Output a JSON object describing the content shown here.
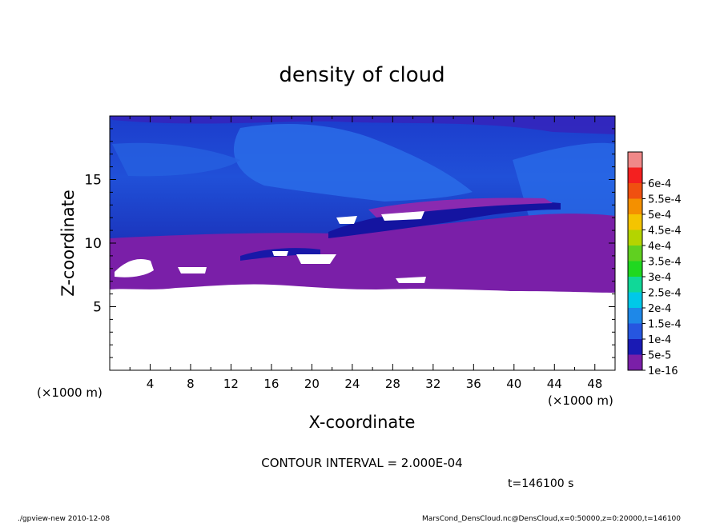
{
  "chart_data": {
    "type": "heatmap",
    "title": "density of cloud",
    "xlabel": "X-coordinate",
    "ylabel": "Z-coordinate",
    "x_unit_left": "(×1000 m)",
    "x_unit_right": "(×1000 m)",
    "xlim": [
      0,
      50
    ],
    "ylim": [
      0,
      20
    ],
    "x_ticks": [
      "4",
      "8",
      "12",
      "16",
      "20",
      "24",
      "28",
      "32",
      "36",
      "40",
      "44",
      "48"
    ],
    "y_ticks": [
      "5",
      "10",
      "15"
    ],
    "colorbar": {
      "labels": [
        "1e-16",
        "5e-5",
        "1e-4",
        "1.5e-4",
        "2e-4",
        "2.5e-4",
        "3e-4",
        "3.5e-4",
        "4e-4",
        "4.5e-4",
        "5e-4",
        "5.5e-4",
        "6e-4"
      ],
      "colors": [
        "#7a1fa8",
        "#1a1ab4",
        "#2656e0",
        "#1e88e8",
        "#00c8e8",
        "#10d898",
        "#20d820",
        "#60d020",
        "#b4d400",
        "#f4c400",
        "#f49000",
        "#f05010",
        "#f42020",
        "#f08888"
      ]
    },
    "regions": [
      {
        "label": "no data (white)",
        "z_range": [
          0,
          6.0
        ]
      },
      {
        "label": "density ~1e-16 (purple band)",
        "z_range": [
          6.0,
          10.5
        ]
      },
      {
        "label": "density ~5e-5 to 1e-4 (blue)",
        "z_range": [
          10.5,
          20
        ]
      }
    ],
    "annotations": {
      "contour_interval": "CONTOUR INTERVAL = 2.000E-04",
      "time": "t=146100 s"
    }
  },
  "footer": {
    "left": "./gpview-new   2010-12-08",
    "right": "MarsCond_DensCloud.nc@DensCloud,x=0:50000,z=0:20000,t=146100"
  }
}
